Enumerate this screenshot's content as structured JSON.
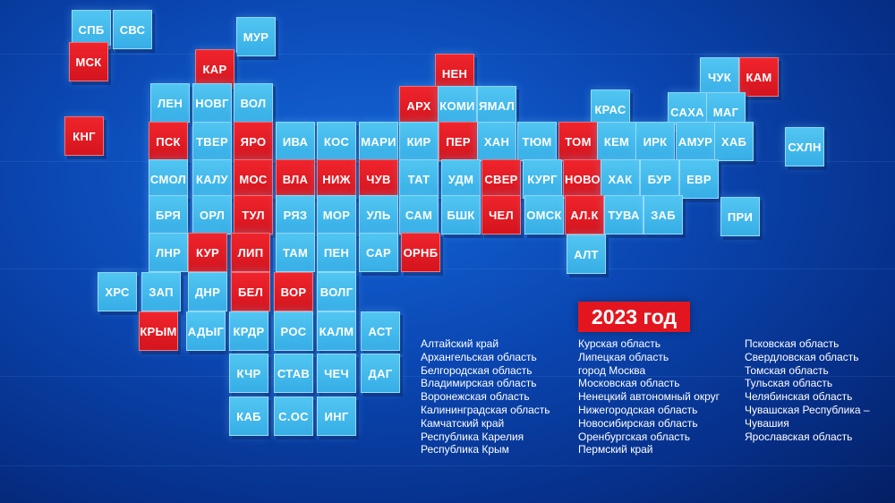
{
  "colors": {
    "blue": "#3bb5ea",
    "red": "#e3161f",
    "background": "#0b48b4"
  },
  "year_label": "2023 год",
  "tiles": [
    {
      "label": "СПБ",
      "color": "blue"
    },
    {
      "label": "СВС",
      "color": "blue"
    },
    {
      "label": "МУР",
      "color": "blue"
    },
    {
      "label": "МСК",
      "color": "red"
    },
    {
      "label": "КАР",
      "color": "red"
    },
    {
      "label": "НЕН",
      "color": "red"
    },
    {
      "label": "ЧУК",
      "color": "blue"
    },
    {
      "label": "КАМ",
      "color": "red"
    },
    {
      "label": "ЛЕН",
      "color": "blue"
    },
    {
      "label": "НОВГ",
      "color": "blue"
    },
    {
      "label": "ВОЛ",
      "color": "blue"
    },
    {
      "label": "АРХ",
      "color": "red"
    },
    {
      "label": "КОМИ",
      "color": "blue"
    },
    {
      "label": "ЯМАЛ",
      "color": "blue"
    },
    {
      "label": "КРАС",
      "color": "blue"
    },
    {
      "label": "САХА",
      "color": "blue"
    },
    {
      "label": "МАГ",
      "color": "blue"
    },
    {
      "label": "КНГ",
      "color": "red"
    },
    {
      "label": "ПСК",
      "color": "red"
    },
    {
      "label": "ТВЕР",
      "color": "blue"
    },
    {
      "label": "ЯРО",
      "color": "red"
    },
    {
      "label": "ИВА",
      "color": "blue"
    },
    {
      "label": "КОС",
      "color": "blue"
    },
    {
      "label": "МАРИ",
      "color": "blue"
    },
    {
      "label": "КИР",
      "color": "blue"
    },
    {
      "label": "ПЕР",
      "color": "red"
    },
    {
      "label": "ХАН",
      "color": "blue"
    },
    {
      "label": "ТЮМ",
      "color": "blue"
    },
    {
      "label": "ТОМ",
      "color": "red"
    },
    {
      "label": "КЕМ",
      "color": "blue"
    },
    {
      "label": "ИРК",
      "color": "blue"
    },
    {
      "label": "АМУР",
      "color": "blue"
    },
    {
      "label": "ХАБ",
      "color": "blue"
    },
    {
      "label": "СХЛН",
      "color": "blue"
    },
    {
      "label": "СМОЛ",
      "color": "blue"
    },
    {
      "label": "КАЛУ",
      "color": "blue"
    },
    {
      "label": "МОС",
      "color": "red"
    },
    {
      "label": "ВЛА",
      "color": "red"
    },
    {
      "label": "НИЖ",
      "color": "red"
    },
    {
      "label": "ЧУВ",
      "color": "red"
    },
    {
      "label": "ТАТ",
      "color": "blue"
    },
    {
      "label": "УДМ",
      "color": "blue"
    },
    {
      "label": "СВЕР",
      "color": "red"
    },
    {
      "label": "КУРГ",
      "color": "blue"
    },
    {
      "label": "НОВО",
      "color": "red"
    },
    {
      "label": "ХАК",
      "color": "blue"
    },
    {
      "label": "БУР",
      "color": "blue"
    },
    {
      "label": "ЕВР",
      "color": "blue"
    },
    {
      "label": "БРЯ",
      "color": "blue"
    },
    {
      "label": "ОРЛ",
      "color": "blue"
    },
    {
      "label": "ТУЛ",
      "color": "red"
    },
    {
      "label": "РЯЗ",
      "color": "blue"
    },
    {
      "label": "МОР",
      "color": "blue"
    },
    {
      "label": "УЛЬ",
      "color": "blue"
    },
    {
      "label": "САМ",
      "color": "blue"
    },
    {
      "label": "БШК",
      "color": "blue"
    },
    {
      "label": "ЧЕЛ",
      "color": "red"
    },
    {
      "label": "ОМСК",
      "color": "blue"
    },
    {
      "label": "АЛ.К",
      "color": "red"
    },
    {
      "label": "ТУВА",
      "color": "blue"
    },
    {
      "label": "ЗАБ",
      "color": "blue"
    },
    {
      "label": "ПРИ",
      "color": "blue"
    },
    {
      "label": "ЛНР",
      "color": "blue"
    },
    {
      "label": "КУР",
      "color": "red"
    },
    {
      "label": "ЛИП",
      "color": "red"
    },
    {
      "label": "ТАМ",
      "color": "blue"
    },
    {
      "label": "ПЕН",
      "color": "blue"
    },
    {
      "label": "САР",
      "color": "blue"
    },
    {
      "label": "ОРНБ",
      "color": "red"
    },
    {
      "label": "АЛТ",
      "color": "blue"
    },
    {
      "label": "ХРС",
      "color": "blue"
    },
    {
      "label": "ЗАП",
      "color": "blue"
    },
    {
      "label": "ДНР",
      "color": "blue"
    },
    {
      "label": "БЕЛ",
      "color": "red"
    },
    {
      "label": "ВОР",
      "color": "red"
    },
    {
      "label": "ВОЛГ",
      "color": "blue"
    },
    {
      "label": "КРЫМ",
      "color": "red"
    },
    {
      "label": "АДЫГ",
      "color": "blue"
    },
    {
      "label": "КРДР",
      "color": "blue"
    },
    {
      "label": "РОС",
      "color": "blue"
    },
    {
      "label": "КАЛМ",
      "color": "blue"
    },
    {
      "label": "АСТ",
      "color": "blue"
    },
    {
      "label": "КЧР",
      "color": "blue"
    },
    {
      "label": "СТАВ",
      "color": "blue"
    },
    {
      "label": "ЧЕЧ",
      "color": "blue"
    },
    {
      "label": "ДАГ",
      "color": "blue"
    },
    {
      "label": "КАБ",
      "color": "blue"
    },
    {
      "label": "С.ОС",
      "color": "blue"
    },
    {
      "label": "ИНГ",
      "color": "blue"
    }
  ],
  "regions_list": {
    "column1": [
      "Алтайский край",
      "Архангельская область",
      "Белгородская область",
      "Владимирская область",
      "Воронежская область",
      "Калининградская область",
      "Камчатский край",
      "Республика Карелия",
      "Республика Крым"
    ],
    "column2": [
      "Курская область",
      "Липецкая область",
      "город Москва",
      "Московская область",
      "Ненецкий автономный округ",
      "Нижегородская область",
      "Новосибирская область",
      "Оренбургская область",
      "Пермский край"
    ],
    "column3": [
      "Псковская область",
      "Свердловская область",
      "Томская область",
      "Тульская область",
      "Челябинская область",
      "Чувашская Республика –",
      "Чувашия",
      "Ярославская область"
    ]
  }
}
